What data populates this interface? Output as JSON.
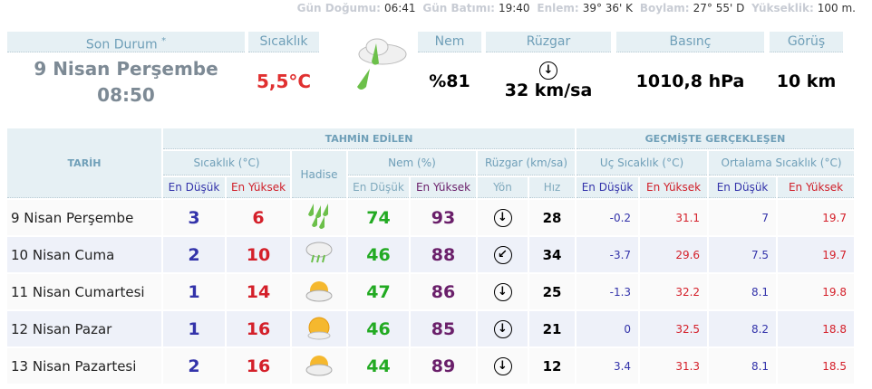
{
  "info": {
    "sunrise_label": "Gün Doğumu:",
    "sunrise": "06:41",
    "sunset_label": "Gün Batımı:",
    "sunset": "19:40",
    "lat_label": "Enlem:",
    "lat": "39° 36' K",
    "lon_label": "Boylam:",
    "lon": "27° 55' D",
    "alt_label": "Yükseklik:",
    "alt": "100 m."
  },
  "current": {
    "status_label": "Son Durum",
    "status_mark": "*",
    "date": "9 Nisan Perşembe",
    "time": "08:50",
    "temp_label": "Sıcaklık",
    "temp": "5,5°C",
    "icon": "rain-cloud-icon",
    "humidity_label": "Nem",
    "humidity": "%81",
    "wind_label": "Rüzgar",
    "wind_dir": "south",
    "wind": "32 km/sa",
    "pressure_label": "Basınç",
    "pressure": "1010,8 hPa",
    "visibility_label": "Görüş",
    "visibility": "10 km"
  },
  "table": {
    "date_header": "TARİH",
    "forecast_header": "TAHMİN EDİLEN",
    "past_header": "GEÇMİŞTE GERÇEKLEŞEN",
    "temp_header": "Sıcaklık (°C)",
    "event_header": "Hadise",
    "hum_header": "Nem (%)",
    "wind_header": "Rüzgar (km/sa)",
    "ext_header": "Uç Sıcaklık (°C)",
    "avg_header": "Ortalama Sıcaklık (°C)",
    "low": "En Düşük",
    "high": "En Yüksek",
    "dir": "Yön",
    "speed": "Hız",
    "rows": [
      {
        "date": "9 Nisan Perşembe",
        "tmin": "3",
        "tmax": "6",
        "icon": "heavy-rain-icon",
        "hmin": "74",
        "hmax": "93",
        "dir": "↓",
        "speed": "28",
        "emin": "-0.2",
        "emax": "31.1",
        "amin": "7",
        "amax": "19.7"
      },
      {
        "date": "10 Nisan Cuma",
        "tmin": "2",
        "tmax": "10",
        "icon": "cloud-rain-icon",
        "hmin": "46",
        "hmax": "88",
        "dir": "↙",
        "speed": "34",
        "emin": "-3.7",
        "emax": "29.6",
        "amin": "7.5",
        "amax": "19.7"
      },
      {
        "date": "11 Nisan Cumartesi",
        "tmin": "1",
        "tmax": "14",
        "icon": "partly-cloudy-icon",
        "hmin": "47",
        "hmax": "86",
        "dir": "↓",
        "speed": "25",
        "emin": "-1.3",
        "emax": "32.2",
        "amin": "8.1",
        "amax": "19.8"
      },
      {
        "date": "12 Nisan Pazar",
        "tmin": "1",
        "tmax": "16",
        "icon": "sunny-icon",
        "hmin": "46",
        "hmax": "85",
        "dir": "↓",
        "speed": "21",
        "emin": "0",
        "emax": "32.5",
        "amin": "8.2",
        "amax": "18.8"
      },
      {
        "date": "13 Nisan Pazartesi",
        "tmin": "2",
        "tmax": "16",
        "icon": "partly-cloudy-icon",
        "hmin": "44",
        "hmax": "89",
        "dir": "↓",
        "speed": "12",
        "emin": "3.4",
        "emax": "31.3",
        "amin": "8.1",
        "amax": "18.5"
      }
    ]
  }
}
